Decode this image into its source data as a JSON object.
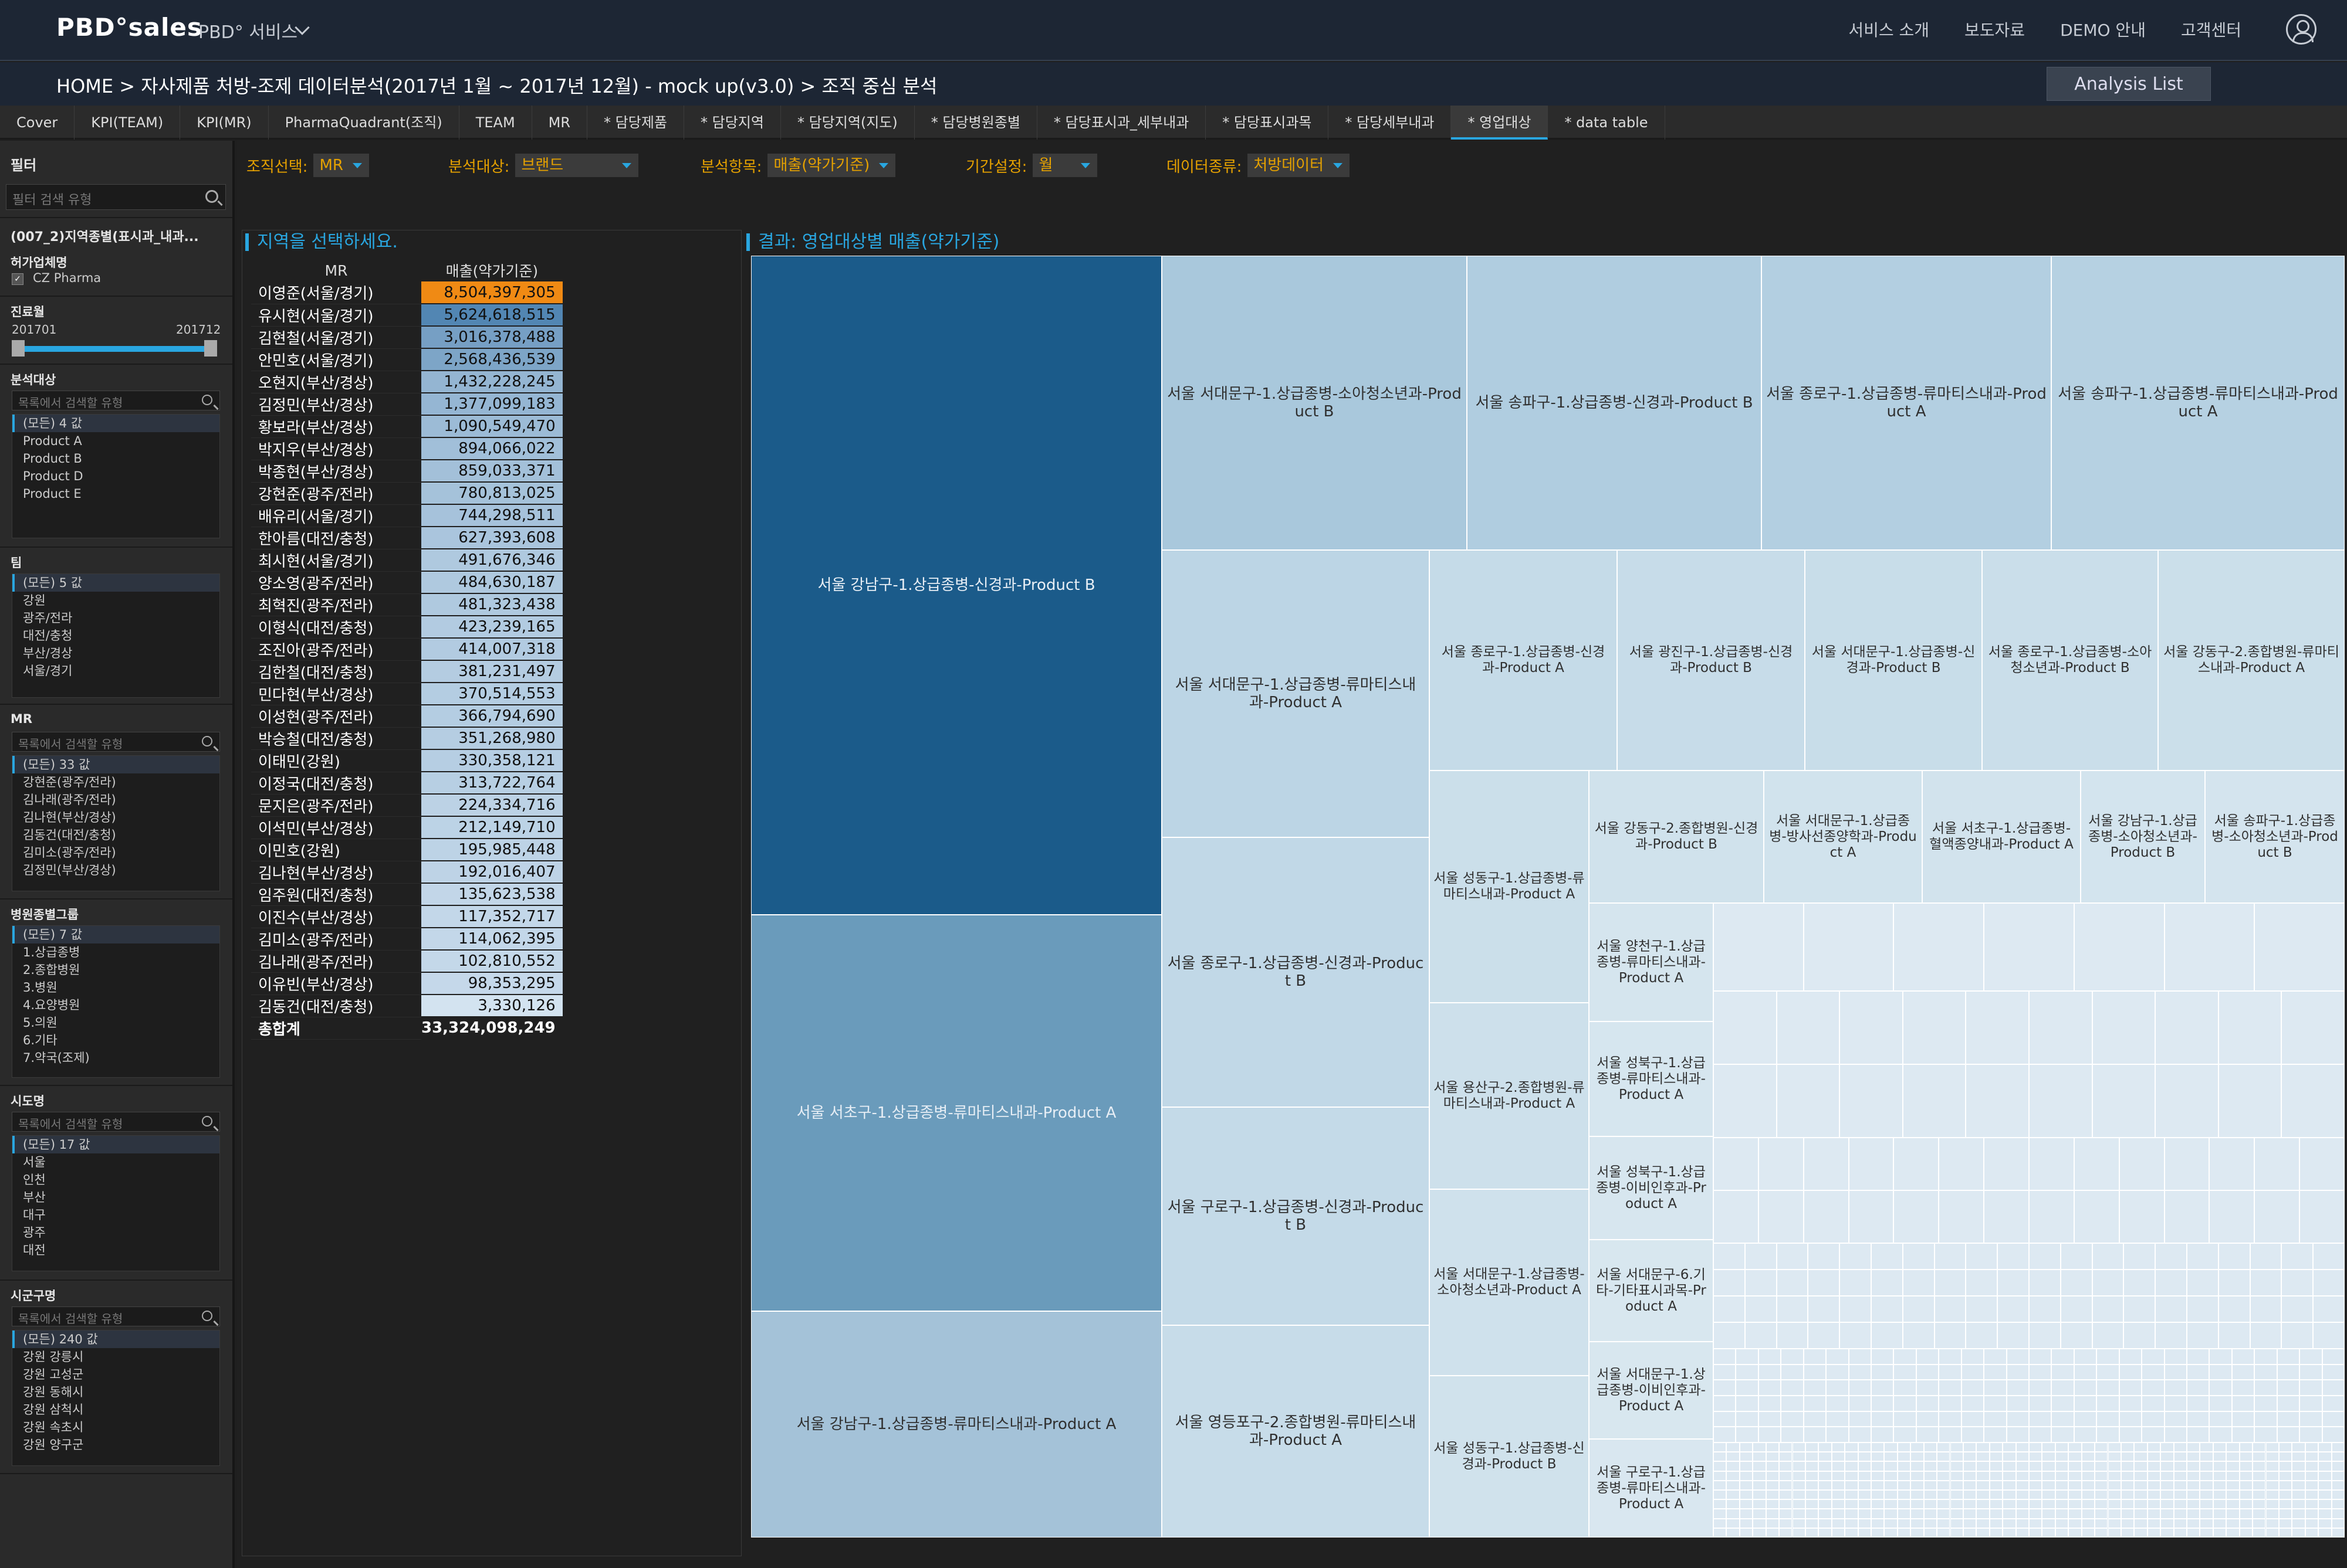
{
  "header": {
    "logo": "PBD°sales",
    "service": "PBD° 서비스",
    "nav": [
      "서비스 소개",
      "보도자료",
      "DEMO 안내",
      "고객센터"
    ]
  },
  "breadcrumb": "HOME > 자사제품 처방-조제 데이터분석(2017년 1월 ~ 2017년 12월) - mock up(v3.0) > 조직 중심 분석",
  "analysis_list": "Analysis List",
  "tabs": [
    "Cover",
    "KPI(TEAM)",
    "KPI(MR)",
    "PharmaQuadrant(조직)",
    "TEAM",
    "MR",
    "* 담당제품",
    "* 담당지역",
    "* 담당지역(지도)",
    "* 담당병원종별",
    "* 담당표시과_세부내과",
    "* 담당표시과목",
    "* 담당세부내과",
    "* 영업대상",
    "* data table"
  ],
  "sidebar": {
    "title": "필터",
    "search_placeholder": "필터 검색 유형",
    "filter_header": "(007_2)지역종별(표시과_내과...",
    "maker_title": "허가업체명",
    "maker_value": "CZ Pharma",
    "period_title": "진료월",
    "period_start": "201701",
    "period_end": "201712",
    "target": {
      "title": "분석대상",
      "placeholder": "목록에서 검색할 유형",
      "items": [
        "(모든) 4 값",
        "Product A",
        "Product B",
        "Product D",
        "Product E"
      ]
    },
    "team": {
      "title": "팀",
      "items": [
        "(모든) 5 값",
        "강원",
        "광주/전라",
        "대전/충청",
        "부산/경상",
        "서울/경기"
      ]
    },
    "mr": {
      "title": "MR",
      "placeholder": "목록에서 검색할 유형",
      "items": [
        "(모든) 33 값",
        "강현준(광주/전라)",
        "김나래(광주/전라)",
        "김나현(부산/경상)",
        "김동건(대전/충청)",
        "김미소(광주/전라)",
        "김정민(부산/경상)"
      ]
    },
    "hosp": {
      "title": "병원종별그룹",
      "items": [
        "(모든) 7 값",
        "1.상급종병",
        "2.종합병원",
        "3.병원",
        "4.요양병원",
        "5.의원",
        "6.기타",
        "7.약국(조제)"
      ]
    },
    "sido": {
      "title": "시도명",
      "placeholder": "목록에서 검색할 유형",
      "items": [
        "(모든) 17 값",
        "서울",
        "인천",
        "부산",
        "대구",
        "광주",
        "대전"
      ]
    },
    "sigungu": {
      "title": "시군구명",
      "placeholder": "목록에서 검색할 유형",
      "items": [
        "(모든) 240 값",
        "강원 강릉시",
        "강원 고성군",
        "강원 동해시",
        "강원 삼척시",
        "강원 속초시",
        "강원 양구군"
      ]
    }
  },
  "controls": [
    {
      "label": "조직선택:",
      "value": "MR"
    },
    {
      "label": "분석대상:",
      "value": "브랜드"
    },
    {
      "label": "분석항목:",
      "value": "매출(약가기준)"
    },
    {
      "label": "기간설정:",
      "value": "월"
    },
    {
      "label": "데이터종류:",
      "value": "처방데이터"
    }
  ],
  "mr_panel": {
    "title": "지역을 선택하세요.",
    "col_mr": "MR",
    "col_sales": "매출(약가기준)",
    "total_label": "총합계",
    "total_value": "33,324,098,249",
    "rows": [
      [
        "이영준(서울/경기)",
        "8,504,397,305"
      ],
      [
        "유시현(서울/경기)",
        "5,624,618,515"
      ],
      [
        "김현철(서울/경기)",
        "3,016,378,488"
      ],
      [
        "안민호(서울/경기)",
        "2,568,436,539"
      ],
      [
        "오현지(부산/경상)",
        "1,432,228,245"
      ],
      [
        "김정민(부산/경상)",
        "1,377,099,183"
      ],
      [
        "황보라(부산/경상)",
        "1,090,549,470"
      ],
      [
        "박지우(부산/경상)",
        "894,066,022"
      ],
      [
        "박종현(부산/경상)",
        "859,033,371"
      ],
      [
        "강현준(광주/전라)",
        "780,813,025"
      ],
      [
        "배유리(서울/경기)",
        "744,298,511"
      ],
      [
        "한아름(대전/충청)",
        "627,393,608"
      ],
      [
        "최시현(서울/경기)",
        "491,676,346"
      ],
      [
        "양소영(광주/전라)",
        "484,630,187"
      ],
      [
        "최혁진(광주/전라)",
        "481,323,438"
      ],
      [
        "이형식(대전/충청)",
        "423,239,165"
      ],
      [
        "조진아(광주/전라)",
        "414,007,318"
      ],
      [
        "김한철(대전/충청)",
        "381,231,497"
      ],
      [
        "민다현(부산/경상)",
        "370,514,553"
      ],
      [
        "이성현(광주/전라)",
        "366,794,690"
      ],
      [
        "박승철(대전/충청)",
        "351,268,980"
      ],
      [
        "이태민(강원)",
        "330,358,121"
      ],
      [
        "이정국(대전/충청)",
        "313,722,764"
      ],
      [
        "문지은(광주/전라)",
        "224,334,716"
      ],
      [
        "이석민(부산/경상)",
        "212,149,710"
      ],
      [
        "이민호(강원)",
        "195,985,448"
      ],
      [
        "김나현(부산/경상)",
        "192,016,407"
      ],
      [
        "임주원(대전/충청)",
        "135,623,538"
      ],
      [
        "이진수(부산/경상)",
        "117,352,717"
      ],
      [
        "김미소(광주/전라)",
        "114,062,395"
      ],
      [
        "김나래(광주/전라)",
        "102,810,552"
      ],
      [
        "이유빈(부산/경상)",
        "98,353,295"
      ],
      [
        "김동건(대전/충청)",
        "3,330,126"
      ]
    ]
  },
  "treemap": {
    "title": "결과: 영업대상별 매출(약가기준)",
    "cells": [
      {
        "label": "서울 강남구-1.상급종병-신경과-Product B",
        "color": "#1b5b8a"
      },
      {
        "label": "서울 서초구-1.상급종병-류마티스내과-Product A",
        "color": "#6a9bbb"
      },
      {
        "label": "서울 강남구-1.상급종병-류마티스내과-Product A",
        "color": "#a4c2d8"
      },
      {
        "label": "서울 서대문구-1.상급종병-소아청소년과-Product B",
        "color": "#a9c8dc"
      },
      {
        "label": "서울 송파구-1.상급종병-신경과-Product B",
        "color": "#b0cde0"
      },
      {
        "label": "서울 종로구-1.상급종병-류마티스내과-Product A",
        "color": "#b3cfe1"
      },
      {
        "label": "서울 송파구-1.상급종병-류마티스내과-Product A",
        "color": "#b6d1e2"
      },
      {
        "label": "서울 서대문구-1.상급종병-류마티스내과-Product A",
        "color": "#bcd5e5"
      },
      {
        "label": "서울 종로구-1.상급종병-신경과-Product B",
        "color": "#c1d8e7"
      },
      {
        "label": "서울 구로구-1.상급종병-신경과-Product B",
        "color": "#c4dae8"
      },
      {
        "label": "서울 영등포구-2.종합병원-류마티스내과-Product A",
        "color": "#c7dce9"
      },
      {
        "label": "서울 종로구-1.상급종병-신경과-Product A",
        "color": "#c5dbe8"
      },
      {
        "label": "서울 광진구-1.상급종병-신경과-Product B",
        "color": "#c7dce9"
      },
      {
        "label": "서울 서대문구-1.상급종병-신경과-Product B",
        "color": "#c8dde9"
      },
      {
        "label": "서울 종로구-1.상급종병-소아청소년과-Product B",
        "color": "#cadeea"
      },
      {
        "label": "서울 강동구-2.종합병원-류마티스내과-Product A",
        "color": "#cbdfea"
      },
      {
        "label": "서울 성동구-1.상급종병-류마티스내과-Product A",
        "color": "#cbdfea"
      },
      {
        "label": "서울 용산구-2.종합병원-류마티스내과-Product A",
        "color": "#cde0eb"
      },
      {
        "label": "서울 서대문구-1.상급종병-소아청소년과-Product A",
        "color": "#cfe1ec"
      },
      {
        "label": "서울 성동구-1.상급종병-신경과-Product B",
        "color": "#d0e2ec"
      },
      {
        "label": "서울 강동구-2.종합병원-신경과-Product B",
        "color": "#d0e2ec"
      },
      {
        "label": "서울 서대문구-1.상급종병-방사선종양학과-Product A",
        "color": "#d1e3ed"
      },
      {
        "label": "서울 서초구-1.상급종병-혈액종양내과-Product A",
        "color": "#d2e3ed"
      },
      {
        "label": "서울 강남구-1.상급종병-소아청소년과-Product B",
        "color": "#d3e4ee"
      },
      {
        "label": "서울 송파구-1.상급종병-소아청소년과-Product B",
        "color": "#d4e4ee"
      },
      {
        "label": "서울 양천구-1.상급종병-류마티스내과-Product A",
        "color": "#d5e5ee"
      },
      {
        "label": "서울 성북구-1.상급종병-류마티스내과-Product A",
        "color": "#d6e6ef"
      },
      {
        "label": "서울 성북구-1.상급종병-이비인후과-Product A",
        "color": "#d7e6ef"
      },
      {
        "label": "서울 서대문구-6.기타-기타표시과목-Product A",
        "color": "#d8e7ef"
      },
      {
        "label": "서울 서대문구-1.상급종병-이비인후과-Product A",
        "color": "#d8e7ef"
      },
      {
        "label": "서울 구로구-1.상급종병-류마티스내과-Product A",
        "color": "#d9e7f0"
      }
    ]
  }
}
